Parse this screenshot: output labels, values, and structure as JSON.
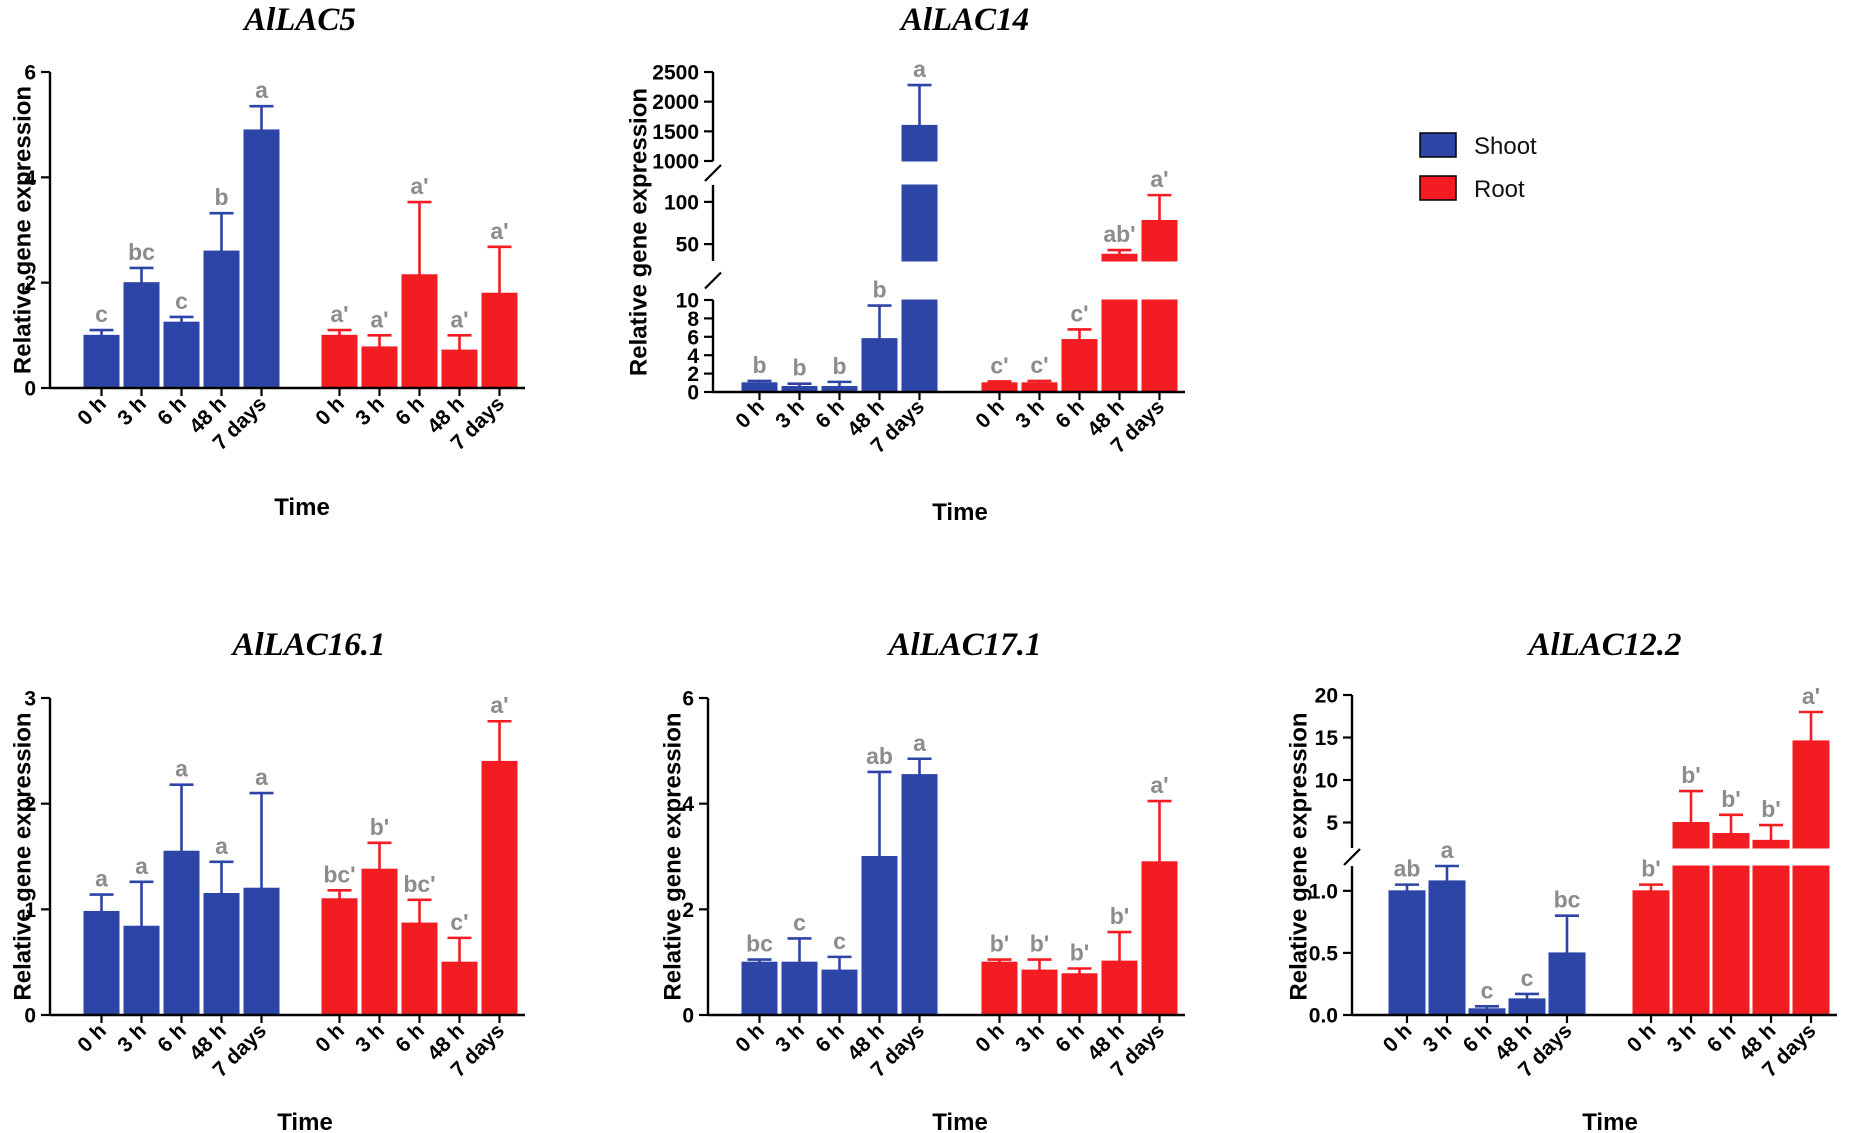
{
  "colors": {
    "shoot": "#2d45a6",
    "root": "#f21c22",
    "sig_label": "#8c8c8c",
    "axis": "#000000"
  },
  "legend": [
    {
      "name": "Shoot",
      "color": "#2d45a6"
    },
    {
      "name": "Root",
      "color": "#f21c22"
    }
  ],
  "chart_data": [
    {
      "type": "bar",
      "title": "AlLAC5",
      "xlabel": "Time",
      "ylabel": "Relative gene expression",
      "categories": [
        "0 h",
        "3 h",
        "6 h",
        "48 h",
        "7 days"
      ],
      "ylim": [
        0,
        6
      ],
      "yticks": [
        "0",
        "2",
        "4",
        "6"
      ],
      "series": [
        {
          "name": "Shoot",
          "values": [
            1.0,
            2.0,
            1.25,
            2.6,
            4.9
          ],
          "errors": [
            0.1,
            0.28,
            0.1,
            0.72,
            0.45
          ],
          "labels": [
            "c",
            "bc",
            "c",
            "b",
            "a"
          ]
        },
        {
          "name": "Root",
          "values": [
            1.0,
            0.78,
            2.15,
            0.72,
            1.8
          ],
          "errors": [
            0.1,
            0.22,
            1.38,
            0.28,
            0.88
          ],
          "labels": [
            "a'",
            "a'",
            "a'",
            "a'",
            "a'"
          ]
        }
      ]
    },
    {
      "type": "bar",
      "title": "AlLAC14",
      "xlabel": "Time",
      "ylabel": "Relative gene expression",
      "categories": [
        "0 h",
        "3 h",
        "6 h",
        "48 h",
        "7 days"
      ],
      "yaxis_breaks": [
        [
          10,
          30
        ],
        [
          120,
          1000
        ]
      ],
      "yticks": [
        "0",
        "2",
        "4",
        "6",
        "8",
        "10",
        "50",
        "100",
        "1000",
        "1500",
        "2000",
        "2500"
      ],
      "series": [
        {
          "name": "Shoot",
          "values": [
            1.0,
            0.6,
            0.6,
            5.8,
            1600
          ],
          "errors": [
            0.2,
            0.3,
            0.5,
            3.6,
            680
          ],
          "labels": [
            "b",
            "b",
            "b",
            "b",
            "a"
          ]
        },
        {
          "name": "Root",
          "values": [
            1.0,
            1.0,
            5.7,
            38,
            78
          ],
          "errors": [
            0.15,
            0.2,
            1.1,
            5,
            30
          ],
          "labels": [
            "c'",
            "c'",
            "c'",
            "ab'",
            "a'"
          ]
        }
      ]
    },
    {
      "type": "bar",
      "title": "AlLAC16.1",
      "xlabel": "Time",
      "ylabel": "Relative gene expression",
      "categories": [
        "0 h",
        "3 h",
        "6 h",
        "48 h",
        "7 days"
      ],
      "ylim": [
        0,
        3
      ],
      "yticks": [
        "0",
        "1",
        "2",
        "3"
      ],
      "series": [
        {
          "name": "Shoot",
          "values": [
            0.98,
            0.84,
            1.55,
            1.15,
            1.2
          ],
          "errors": [
            0.16,
            0.42,
            0.63,
            0.3,
            0.9
          ],
          "labels": [
            "a",
            "a",
            "a",
            "a",
            "a"
          ]
        },
        {
          "name": "Root",
          "values": [
            1.1,
            1.38,
            0.87,
            0.5,
            2.4
          ],
          "errors": [
            0.08,
            0.25,
            0.22,
            0.23,
            0.38
          ],
          "labels": [
            "bc'",
            "b'",
            "bc'",
            "c'",
            "a'"
          ]
        }
      ]
    },
    {
      "type": "bar",
      "title": "AlLAC17.1",
      "xlabel": "Time",
      "ylabel": "Relative gene expression",
      "categories": [
        "0 h",
        "3 h",
        "6 h",
        "48 h",
        "7 days"
      ],
      "ylim": [
        0,
        6
      ],
      "yticks": [
        "0",
        "2",
        "4",
        "6"
      ],
      "series": [
        {
          "name": "Shoot",
          "values": [
            1.0,
            1.0,
            0.85,
            3.0,
            4.55
          ],
          "errors": [
            0.05,
            0.45,
            0.25,
            1.6,
            0.3
          ],
          "labels": [
            "bc",
            "c",
            "c",
            "ab",
            "a"
          ]
        },
        {
          "name": "Root",
          "values": [
            1.0,
            0.85,
            0.78,
            1.02,
            2.9
          ],
          "errors": [
            0.05,
            0.2,
            0.1,
            0.55,
            1.15
          ],
          "labels": [
            "b'",
            "b'",
            "b'",
            "b'",
            "a'"
          ]
        }
      ]
    },
    {
      "type": "bar",
      "title": "AlLAC12.2",
      "xlabel": "Time",
      "ylabel": "Relative gene expression",
      "categories": [
        "0 h",
        "3 h",
        "6 h",
        "48 h",
        "7 days"
      ],
      "yaxis_breaks": [
        [
          1.2,
          2
        ]
      ],
      "yticks": [
        "0.0",
        "0.5",
        "1.0",
        "5",
        "10",
        "15",
        "20"
      ],
      "series": [
        {
          "name": "Shoot",
          "values": [
            1.0,
            1.08,
            0.05,
            0.13,
            0.5
          ],
          "errors": [
            0.05,
            0.12,
            0.02,
            0.04,
            0.3
          ],
          "labels": [
            "ab",
            "a",
            "c",
            "c",
            "bc"
          ]
        },
        {
          "name": "Root",
          "values": [
            1.0,
            5.0,
            3.7,
            2.9,
            14.6
          ],
          "errors": [
            0.05,
            3.7,
            2.2,
            1.8,
            3.4
          ],
          "labels": [
            "b'",
            "b'",
            "b'",
            "b'",
            "a'"
          ]
        }
      ]
    }
  ]
}
